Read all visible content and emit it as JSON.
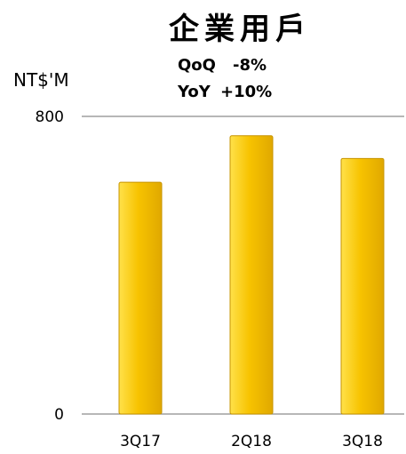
{
  "chart_data": {
    "type": "bar",
    "title": "企業用戶",
    "unit_label": "NT$'M",
    "stats": [
      {
        "label": "QoQ",
        "value": "-8%"
      },
      {
        "label": "YoY",
        "value": "+10%"
      }
    ],
    "categories": [
      "3Q17",
      "2Q18",
      "3Q18"
    ],
    "series": [
      {
        "values": [
          623,
          748,
          687
        ]
      }
    ],
    "ylim": [
      0,
      800
    ],
    "yticks": [
      0,
      800
    ],
    "grid": false,
    "colors": {
      "bar_top": "#FFE14A",
      "bar_mid": "#F7C300",
      "bar_bottom": "#E0A800",
      "bar_stroke": "#C79400"
    }
  }
}
